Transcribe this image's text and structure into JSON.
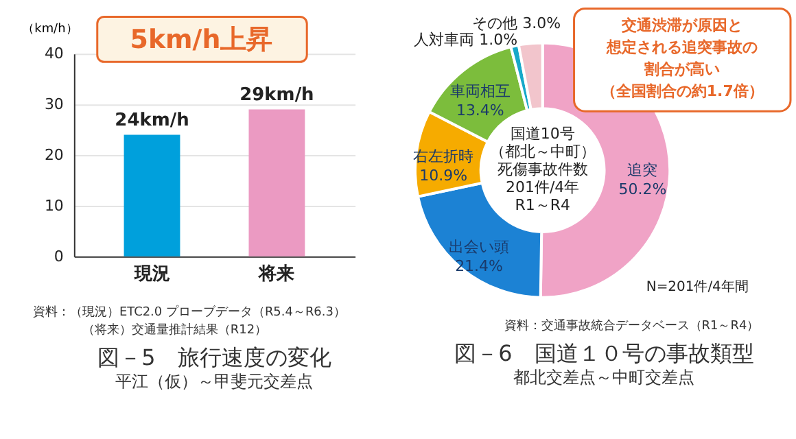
{
  "chart_data": [
    {
      "type": "bar",
      "title": "図－5　旅行速度の変化",
      "subtitle": "平江（仮）～甲斐元交差点",
      "ylabel": "（km/h）",
      "categories": [
        "現況",
        "将来"
      ],
      "values": [
        24,
        29
      ],
      "colors": [
        "#00a0dc",
        "#eb9ac2"
      ],
      "value_labels": [
        "24km/h",
        "29km/h"
      ],
      "ylim": [
        0,
        40
      ],
      "yticks": [
        0,
        10,
        20,
        30,
        40
      ],
      "grid": "y",
      "annotations": [
        "5km/h上昇",
        "資料：（現況）ETC2.0 プローブデータ（R5.4～R6.3）",
        "（将来）交通量推計結果（R12）"
      ]
    },
    {
      "type": "donut",
      "title": "図－6　国道１０号の事故類型",
      "subtitle": "都北交差点～中町交差点",
      "categories": [
        "追突",
        "出会い頭",
        "右左折時",
        "車両相互",
        "人対車両",
        "その他"
      ],
      "values": [
        50.2,
        21.4,
        10.9,
        13.4,
        1.0,
        3.0
      ],
      "value_labels": [
        "50.2%",
        "21.4%",
        "10.9%",
        "13.4%",
        "1.0%",
        "3.0%"
      ],
      "colors": [
        "#f0a3c6",
        "#1c82d4",
        "#f6ab00",
        "#7cbd3c",
        "#17a8c9",
        "#f2c5cc"
      ],
      "annotations": [
        "国道10号",
        "（都北～中町）",
        "死傷事故件数",
        "201件/4年",
        "R1～R4",
        "交通渋滞が原因と",
        "想定される追突事故の",
        "割合が高い",
        "（全国割合の約1.7倍）",
        "N=201件/4年間",
        "資料：交通事故統合データベース（R1～R4）"
      ]
    }
  ]
}
